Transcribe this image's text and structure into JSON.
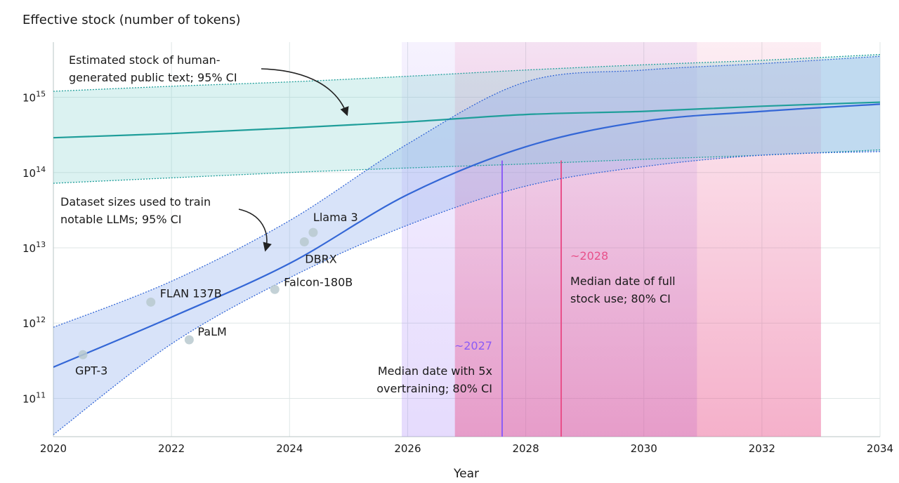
{
  "chart_data": {
    "type": "line",
    "title": "Effective stock (number of tokens)",
    "x_label": "Year",
    "log_y": true,
    "grid": true,
    "xlim": [
      2020,
      2034
    ],
    "xticks": [
      2020,
      2022,
      2024,
      2026,
      2028,
      2030,
      2032,
      2034
    ],
    "ylim": [
      31000000000.0,
      5400000000000000.0
    ],
    "yticks": [
      {
        "value": 100000000000.0,
        "label": "10",
        "sup": "11"
      },
      {
        "value": 1000000000000.0,
        "label": "10",
        "sup": "12"
      },
      {
        "value": 10000000000000.0,
        "label": "10",
        "sup": "13"
      },
      {
        "value": 100000000000000.0,
        "label": "10",
        "sup": "14"
      },
      {
        "value": 1000000000000000.0,
        "label": "10",
        "sup": "15"
      }
    ],
    "x": [
      2020,
      2022,
      2024,
      2026,
      2028,
      2030,
      2032,
      2034
    ],
    "series": [
      {
        "name_lines": [
          "Estimated stock of human-",
          "generated public text; 95% CI"
        ],
        "color": "#1f9e9a",
        "values": [
          290000000000000.0,
          330000000000000.0,
          390000000000000.0,
          470000000000000.0,
          590000000000000.0,
          650000000000000.0,
          760000000000000.0,
          860000000000000.0
        ],
        "upper": [
          1200000000000000.0,
          1400000000000000.0,
          1600000000000000.0,
          1900000000000000.0,
          2300000000000000.0,
          2700000000000000.0,
          3100000000000000.0,
          3700000000000000.0
        ],
        "lower": [
          72000000000000.0,
          85000000000000.0,
          100000000000000.0,
          115000000000000.0,
          130000000000000.0,
          150000000000000.0,
          170000000000000.0,
          200000000000000.0
        ]
      },
      {
        "name_lines": [
          "Dataset sizes used to train",
          "notable LLMs; 95% CI"
        ],
        "color": "#3467d6",
        "values": [
          260000000000.0,
          1200000000000.0,
          6200000000000.0,
          51000000000000.0,
          220000000000000.0,
          480000000000000.0,
          650000000000000.0,
          810000000000000.0
        ],
        "upper": [
          880000000000.0,
          3600000000000.0,
          23000000000000.0,
          240000000000000.0,
          1600000000000000.0,
          2300000000000000.0,
          2800000000000000.0,
          3500000000000000.0
        ],
        "lower": [
          33000000000.0,
          530000000000.0,
          4000000000000.0,
          20000000000000.0,
          66000000000000.0,
          120000000000000.0,
          170000000000000.0,
          190000000000000.0
        ]
      }
    ],
    "points": {
      "color": "#b9c9cf",
      "names": [
        "GPT-3",
        "FLAN 137B",
        "PaLM",
        "Falcon-180B",
        "DBRX",
        "Llama 3"
      ],
      "x": [
        2020.5,
        2021.65,
        2022.3,
        2023.75,
        2024.25,
        2024.4
      ],
      "y": [
        380000000000.0,
        1900000000000.0,
        600000000000.0,
        2800000000000.0,
        12000000000000.0,
        16000000000000.0
      ]
    },
    "intervals": [
      {
        "label": "~2027",
        "text_lines": [
          "Median date with 5x",
          "overtraining; 80% CI"
        ],
        "color": "#8b5cf6",
        "median": 2027.6,
        "lower": 2025.9,
        "upper": 2030.9
      },
      {
        "label": "~2028",
        "text_lines": [
          "Median date of full",
          "stock use; 80% CI"
        ],
        "color": "#e8508a",
        "median": 2028.6,
        "lower": 2026.8,
        "upper": 2033.0
      }
    ]
  }
}
